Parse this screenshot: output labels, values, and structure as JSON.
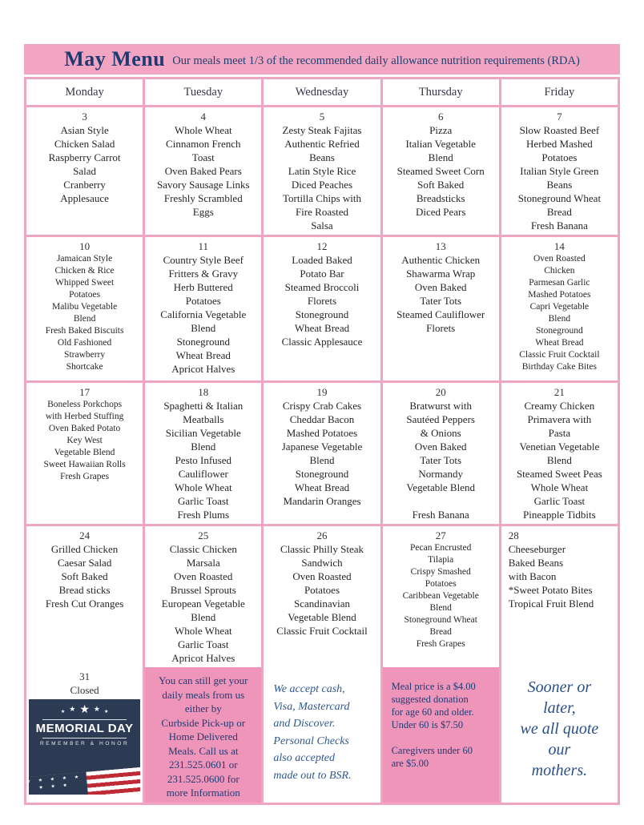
{
  "header": {
    "title": "May Menu",
    "subtitle": "Our meals meet 1/3 of the recommended daily allowance nutrition requirements (RDA)"
  },
  "day_headers": [
    "Monday",
    "Tuesday",
    "Wednesday",
    "Thursday",
    "Friday"
  ],
  "weeks": [
    {
      "days": [
        {
          "date": "3",
          "lines": [
            "Asian Style",
            "Chicken Salad",
            "Raspberry Carrot",
            "Salad",
            "Cranberry",
            "Applesauce"
          ]
        },
        {
          "date": "4",
          "lines": [
            "Whole Wheat",
            "Cinnamon French",
            "Toast",
            "Oven Baked Pears",
            "Savory Sausage Links",
            "Freshly Scrambled",
            "Eggs"
          ]
        },
        {
          "date": "5",
          "lines": [
            "Zesty Steak Fajitas",
            "Authentic Refried",
            "Beans",
            "Latin Style Rice",
            "Diced Peaches",
            "Tortilla Chips with",
            "Fire Roasted",
            "Salsa"
          ]
        },
        {
          "date": "6",
          "lines": [
            "Pizza",
            "Italian Vegetable",
            "Blend",
            "Steamed Sweet Corn",
            "Soft Baked",
            "Breadsticks",
            "Diced Pears"
          ]
        },
        {
          "date": "7",
          "lines": [
            "Slow Roasted Beef",
            "Herbed Mashed",
            "Potatoes",
            "Italian Style Green",
            "Beans",
            "Stoneground Wheat",
            "Bread",
            "Fresh Banana"
          ]
        }
      ]
    },
    {
      "days": [
        {
          "date": "10",
          "small": true,
          "lines": [
            "Jamaican Style",
            "Chicken & Rice",
            "Whipped Sweet",
            "Potatoes",
            "Malibu Vegetable",
            "Blend",
            "Fresh Baked Biscuits",
            "Old Fashioned",
            "Strawberry",
            "Shortcake"
          ]
        },
        {
          "date": "11",
          "lines": [
            "Country Style Beef",
            "Fritters & Gravy",
            "Herb Buttered",
            "Potatoes",
            "California Vegetable",
            "Blend",
            "Stoneground",
            "Wheat Bread",
            "Apricot Halves"
          ]
        },
        {
          "date": "12",
          "lines": [
            "Loaded Baked",
            "Potato Bar",
            "Steamed Broccoli",
            "Florets",
            "Stoneground",
            "Wheat Bread",
            "Classic Applesauce"
          ]
        },
        {
          "date": "13",
          "lines": [
            "Authentic Chicken",
            "Shawarma Wrap",
            "Oven Baked",
            "Tater Tots",
            "Steamed Cauliflower",
            "Florets"
          ]
        },
        {
          "date": "14",
          "small": true,
          "lines": [
            "Oven Roasted",
            "Chicken",
            "Parmesan Garlic",
            "Mashed Potatoes",
            "Capri Vegetable",
            "Blend",
            "Stoneground",
            "Wheat Bread",
            "Classic Fruit Cocktail",
            "Birthday Cake Bites"
          ]
        }
      ]
    },
    {
      "days": [
        {
          "date": "17",
          "small": true,
          "lines": [
            "Boneless Porkchops",
            "with Herbed Stuffing",
            "Oven Baked Potato",
            "Key West",
            "Vegetable Blend",
            "Sweet Hawaiian Rolls",
            "Fresh Grapes"
          ]
        },
        {
          "date": "18",
          "lines": [
            "Spaghetti & Italian",
            "Meatballs",
            "Sicilian Vegetable",
            "Blend",
            "Pesto Infused",
            "Cauliflower",
            "Whole Wheat",
            "Garlic Toast",
            "Fresh Plums"
          ]
        },
        {
          "date": "19",
          "lines": [
            "Crispy Crab Cakes",
            "Cheddar Bacon",
            "Mashed Potatoes",
            "Japanese Vegetable",
            "Blend",
            "Stoneground",
            "Wheat Bread",
            "Mandarin Oranges"
          ]
        },
        {
          "date": "20",
          "lines": [
            "Bratwurst with",
            "Sautéed Peppers",
            "& Onions",
            "Oven Baked",
            "Tater Tots",
            "Normandy",
            "Vegetable Blend",
            "",
            "Fresh Banana"
          ]
        },
        {
          "date": "21",
          "lines": [
            "Creamy Chicken",
            "Primavera with",
            "Pasta",
            "Venetian Vegetable",
            "Blend",
            "Steamed Sweet Peas",
            "Whole Wheat",
            "Garlic Toast",
            "Pineapple Tidbits"
          ]
        }
      ]
    },
    {
      "days": [
        {
          "date": "24",
          "lines": [
            "Grilled Chicken",
            "Caesar Salad",
            "Soft Baked",
            "Bread sticks",
            "Fresh Cut Oranges"
          ]
        },
        {
          "date": "25",
          "lines": [
            "Classic Chicken",
            "Marsala",
            "Oven Roasted",
            "Brussel Sprouts",
            "European Vegetable",
            "Blend",
            "Whole Wheat",
            "Garlic Toast",
            "Apricot Halves"
          ]
        },
        {
          "date": "26",
          "lines": [
            "Classic Philly Steak",
            "Sandwich",
            "Oven Roasted",
            "Potatoes",
            "Scandinavian",
            "Vegetable Blend",
            "Classic Fruit Cocktail"
          ]
        },
        {
          "date": "27",
          "small": true,
          "lines": [
            "Pecan Encrusted",
            "Tilapia",
            "Crispy Smashed",
            "Potatoes",
            "Caribbean Vegetable",
            "Blend",
            "Stoneground Wheat",
            "Bread",
            "Fresh Grapes"
          ]
        },
        {
          "date": "28",
          "align": "left",
          "lines": [
            "Cheeseburger",
            "Baked Beans",
            "with Bacon",
            "*Sweet Potato Bites",
            "Tropical Fruit Blend"
          ]
        }
      ]
    }
  ],
  "footer_row": {
    "monday": {
      "date_label": [
        "31",
        "Closed"
      ],
      "memorial": {
        "stars": "★",
        "title": "MEMORIAL DAY",
        "subtitle": "REMEMBER & HONOR",
        "canton_stars": [
          "★ ★ ★",
          "★ ★ ★",
          "★ ★"
        ]
      }
    },
    "tuesday": {
      "lines": [
        "You can still get your",
        "daily meals from us",
        "either by",
        "Curbside Pick-up or",
        "Home Delivered",
        "Meals. Call us at",
        "231.525.0601 or",
        "231.525.0600 for",
        "more Information"
      ]
    },
    "wednesday": {
      "lines": [
        "We accept cash,",
        "Visa, Mastercard",
        "and Discover.",
        "Personal Checks",
        "also accepted",
        "made out to BSR."
      ]
    },
    "thursday": {
      "lines": [
        "Meal price is a $4.00",
        "suggested donation",
        "for age 60 and older.",
        "Under 60 is $7.50",
        "",
        "Caregivers under 60",
        "are $5.00"
      ]
    },
    "friday": {
      "lines": [
        "Sooner or",
        "later,",
        "we all quote",
        "our",
        "mothers."
      ]
    }
  },
  "colors": {
    "band_pink": "#f1a5c2",
    "grid_pink": "#f0a6c2",
    "footer_pink": "#ef95b9",
    "navy": "#1e3a70",
    "memorial_navy": "#2c3a54",
    "flag_red": "#bf2b35"
  }
}
